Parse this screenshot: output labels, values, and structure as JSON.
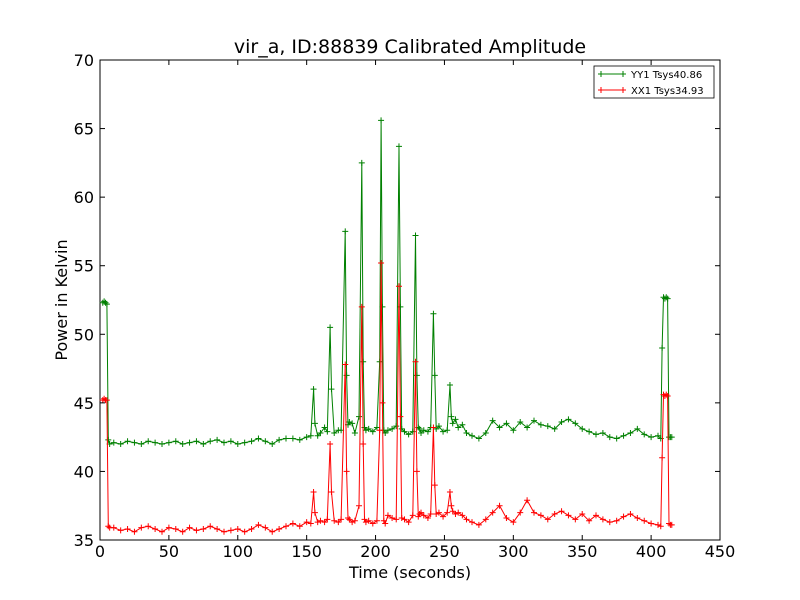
{
  "chart_data": {
    "type": "line",
    "title": "vir_a, ID:88839 Calibrated Amplitude",
    "xlabel": "Time (seconds)",
    "ylabel": "Power in Kelvin",
    "xlim": [
      0,
      450
    ],
    "ylim": [
      35,
      70
    ],
    "xticks": [
      0,
      50,
      100,
      150,
      200,
      250,
      300,
      350,
      400,
      450
    ],
    "yticks": [
      35,
      40,
      45,
      50,
      55,
      60,
      65,
      70
    ],
    "grid": false,
    "legend_position": "top-right",
    "series": [
      {
        "name": "YY1 Tsys40.86",
        "color": "#008000",
        "marker": "+",
        "x": [
          2,
          3,
          4,
          5,
          6,
          7,
          10,
          15,
          20,
          25,
          30,
          35,
          40,
          45,
          50,
          55,
          60,
          65,
          70,
          75,
          80,
          85,
          90,
          95,
          100,
          105,
          110,
          115,
          120,
          125,
          130,
          135,
          140,
          145,
          150,
          153,
          155,
          156,
          158,
          160,
          163,
          165,
          167,
          168,
          170,
          173,
          175,
          178,
          179,
          180,
          181,
          183,
          185,
          188,
          190,
          191,
          192,
          193,
          195,
          198,
          201,
          203,
          204,
          205,
          206,
          207,
          209,
          212,
          215,
          217,
          218,
          219,
          221,
          224,
          227,
          229,
          230,
          231,
          232,
          233,
          235,
          238,
          240,
          242,
          243,
          244,
          246,
          249,
          252,
          254,
          255,
          256,
          258,
          260,
          263,
          266,
          270,
          275,
          280,
          285,
          290,
          295,
          300,
          305,
          310,
          315,
          320,
          325,
          330,
          335,
          340,
          345,
          350,
          355,
          360,
          365,
          370,
          375,
          380,
          385,
          390,
          395,
          400,
          405,
          407,
          408,
          409,
          410,
          411,
          412,
          413,
          414,
          415
        ],
        "values": [
          52.3,
          52.4,
          52.3,
          52.2,
          42.3,
          42.0,
          42.1,
          42.0,
          42.2,
          42.1,
          42.0,
          42.2,
          42.1,
          42.0,
          42.1,
          42.2,
          42.0,
          42.1,
          42.2,
          42.0,
          42.2,
          42.3,
          42.1,
          42.2,
          42.0,
          42.1,
          42.2,
          42.4,
          42.2,
          42.0,
          42.3,
          42.4,
          42.4,
          42.3,
          42.5,
          42.6,
          46.0,
          43.5,
          42.6,
          42.8,
          43.2,
          42.9,
          50.5,
          46.0,
          42.8,
          43.0,
          43.0,
          57.5,
          47.0,
          43.4,
          43.6,
          43.5,
          42.8,
          44.0,
          62.5,
          48.0,
          43.2,
          43.0,
          43.1,
          42.9,
          43.2,
          48.0,
          65.6,
          52.0,
          43.0,
          42.8,
          43.0,
          43.1,
          43.3,
          63.7,
          52.0,
          43.1,
          42.9,
          42.7,
          42.9,
          57.2,
          47.0,
          43.2,
          43.1,
          42.8,
          43.0,
          42.9,
          43.2,
          51.5,
          47.0,
          43.1,
          43.3,
          42.9,
          43.0,
          46.3,
          44.0,
          43.5,
          43.8,
          43.2,
          43.4,
          42.8,
          42.6,
          42.4,
          42.8,
          43.7,
          43.2,
          43.5,
          43.0,
          43.6,
          43.2,
          43.7,
          43.4,
          43.3,
          43.1,
          43.6,
          43.8,
          43.5,
          43.1,
          42.9,
          42.7,
          42.8,
          42.5,
          42.4,
          42.6,
          42.8,
          43.1,
          42.7,
          42.5,
          42.6,
          42.4,
          49.0,
          52.7,
          52.6,
          52.7,
          52.6,
          42.5,
          42.5,
          42.5
        ]
      },
      {
        "name": "XX1 Tsys34.93",
        "color": "#ff0000",
        "marker": "+",
        "x": [
          2,
          3,
          4,
          5,
          6,
          7,
          10,
          15,
          20,
          25,
          30,
          35,
          40,
          45,
          50,
          55,
          60,
          65,
          70,
          75,
          80,
          85,
          90,
          95,
          100,
          105,
          110,
          115,
          120,
          125,
          130,
          135,
          140,
          145,
          150,
          153,
          155,
          156,
          158,
          160,
          163,
          165,
          167,
          168,
          170,
          173,
          175,
          178,
          179,
          180,
          181,
          183,
          185,
          188,
          190,
          191,
          192,
          193,
          195,
          198,
          201,
          203,
          204,
          205,
          206,
          207,
          209,
          212,
          215,
          217,
          218,
          219,
          221,
          224,
          227,
          229,
          230,
          231,
          232,
          233,
          235,
          238,
          240,
          242,
          243,
          244,
          246,
          249,
          252,
          254,
          255,
          256,
          258,
          260,
          263,
          266,
          270,
          275,
          280,
          285,
          290,
          295,
          300,
          305,
          310,
          315,
          320,
          325,
          330,
          335,
          340,
          345,
          350,
          355,
          360,
          365,
          370,
          375,
          380,
          385,
          390,
          395,
          400,
          405,
          407,
          408,
          409,
          410,
          411,
          412,
          413,
          414,
          415
        ],
        "values": [
          45.2,
          45.3,
          45.2,
          45.2,
          36.0,
          35.9,
          35.9,
          35.7,
          35.8,
          35.6,
          35.9,
          36.0,
          35.8,
          35.6,
          35.9,
          35.8,
          35.6,
          35.9,
          35.7,
          35.8,
          36.0,
          35.8,
          35.6,
          35.7,
          35.8,
          35.6,
          35.8,
          36.1,
          35.9,
          35.6,
          35.8,
          36.0,
          36.2,
          36.0,
          36.3,
          36.2,
          38.5,
          37.0,
          36.3,
          36.4,
          36.3,
          36.5,
          42.0,
          38.5,
          36.4,
          36.3,
          36.5,
          47.8,
          40.0,
          36.6,
          36.5,
          36.3,
          36.4,
          37.5,
          52.0,
          42.0,
          36.5,
          36.3,
          36.4,
          36.2,
          36.4,
          43.0,
          55.2,
          45.0,
          36.4,
          36.2,
          36.8,
          36.6,
          36.5,
          53.5,
          44.0,
          36.6,
          36.5,
          36.3,
          36.8,
          48.0,
          40.0,
          36.7,
          36.9,
          37.0,
          36.8,
          36.6,
          36.9,
          43.2,
          39.0,
          36.9,
          37.0,
          36.7,
          37.0,
          38.5,
          37.5,
          37.1,
          36.9,
          37.0,
          36.8,
          36.5,
          36.3,
          36.1,
          36.5,
          37.0,
          37.5,
          36.6,
          36.3,
          37.0,
          37.9,
          37.0,
          36.8,
          36.5,
          36.9,
          37.1,
          36.8,
          36.5,
          36.9,
          36.4,
          36.8,
          36.5,
          36.3,
          36.4,
          36.7,
          36.9,
          36.6,
          36.4,
          36.2,
          36.1,
          36.0,
          41.0,
          45.6,
          45.5,
          45.6,
          45.5,
          36.2,
          36.1,
          36.1
        ]
      }
    ]
  }
}
